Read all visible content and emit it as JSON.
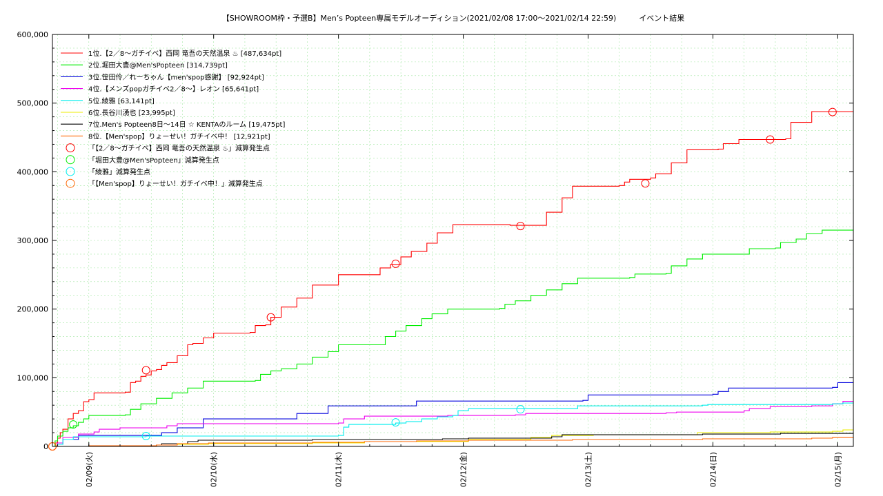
{
  "chart_data": {
    "type": "line",
    "title": "【SHOWROOM枠・予選B】Men’s Popteen専属モデルオーディション(2021/02/08 17:00～2021/02/14 22:59)　　　イベント結果",
    "xlabel": "",
    "ylabel": "",
    "x_unit": "hours since 2021/02/08 17:00",
    "xlim": [
      0,
      154
    ],
    "ylim": [
      0,
      600000
    ],
    "y_ticks": [
      0,
      100000,
      200000,
      300000,
      400000,
      500000,
      600000
    ],
    "y_tick_labels": [
      "0",
      "100,000",
      "200,000",
      "300,000",
      "400,000",
      "500,000",
      "600,000"
    ],
    "x_ticks": [
      7,
      31,
      55,
      79,
      103,
      127,
      151
    ],
    "x_tick_labels": [
      "02/09(火)",
      "02/10(水)",
      "02/11(木)",
      "02/12(金)",
      "02/13(土)",
      "02/14(日)",
      "02/15(月)"
    ],
    "grid": true,
    "legend_position": "top-left",
    "series": [
      {
        "name": "1位.【2／8〜ガチイベ】西岡 竜吾の天然温泉 ♨ [487,634pt]",
        "color": "#ff0000",
        "step": true,
        "points": [
          [
            0,
            0
          ],
          [
            0.5,
            5000
          ],
          [
            1,
            12000
          ],
          [
            1.5,
            20000
          ],
          [
            2,
            25000
          ],
          [
            3,
            40000
          ],
          [
            4,
            48000
          ],
          [
            5,
            52000
          ],
          [
            6,
            65000
          ],
          [
            7,
            68000
          ],
          [
            8,
            78000
          ],
          [
            14,
            79000
          ],
          [
            15,
            93000
          ],
          [
            16,
            95000
          ],
          [
            17,
            102000
          ],
          [
            18,
            104000
          ],
          [
            19,
            110000
          ],
          [
            20,
            112000
          ],
          [
            21,
            118000
          ],
          [
            22,
            122000
          ],
          [
            24,
            132000
          ],
          [
            26,
            148000
          ],
          [
            27,
            150000
          ],
          [
            29,
            158000
          ],
          [
            31,
            165000
          ],
          [
            38,
            166000
          ],
          [
            39,
            176000
          ],
          [
            41,
            177000
          ],
          [
            42,
            188000
          ],
          [
            44,
            203000
          ],
          [
            47,
            216000
          ],
          [
            50,
            235000
          ],
          [
            55,
            250000
          ],
          [
            62,
            250000
          ],
          [
            63,
            260000
          ],
          [
            65,
            265000
          ],
          [
            67,
            276000
          ],
          [
            69,
            284000
          ],
          [
            72,
            296000
          ],
          [
            74,
            311000
          ],
          [
            77,
            323000
          ],
          [
            88,
            322000
          ],
          [
            89,
            322000
          ],
          [
            94,
            322000
          ],
          [
            95,
            341000
          ],
          [
            98,
            362000
          ],
          [
            100,
            379000
          ],
          [
            109,
            380000
          ],
          [
            110,
            385000
          ],
          [
            111,
            389000
          ],
          [
            115,
            391000
          ],
          [
            116,
            397000
          ],
          [
            119,
            413000
          ],
          [
            122,
            432000
          ],
          [
            128,
            433000
          ],
          [
            129,
            441000
          ],
          [
            132,
            447000
          ],
          [
            141,
            448000
          ],
          [
            142,
            472000
          ],
          [
            145,
            472000
          ],
          [
            146,
            487634
          ],
          [
            154,
            487634
          ]
        ],
        "reduction_points": [
          [
            0,
            0
          ],
          [
            18,
            111000
          ],
          [
            42,
            188000
          ],
          [
            66,
            266000
          ],
          [
            90,
            321000
          ],
          [
            114,
            383000
          ],
          [
            138,
            447000
          ],
          [
            150,
            487000
          ]
        ]
      },
      {
        "name": "2位.堀田大豊@Men'sPopteen [314,739pt]",
        "color": "#00ee00",
        "step": true,
        "points": [
          [
            0,
            0
          ],
          [
            0.5,
            8000
          ],
          [
            1,
            15000
          ],
          [
            2,
            22000
          ],
          [
            3,
            27000
          ],
          [
            4,
            30000
          ],
          [
            5,
            35000
          ],
          [
            6,
            40000
          ],
          [
            7,
            45000
          ],
          [
            14,
            46000
          ],
          [
            15,
            54000
          ],
          [
            17,
            62000
          ],
          [
            20,
            70000
          ],
          [
            23,
            78000
          ],
          [
            26,
            85000
          ],
          [
            29,
            95000
          ],
          [
            39,
            96000
          ],
          [
            40,
            105000
          ],
          [
            42,
            110000
          ],
          [
            44,
            113000
          ],
          [
            47,
            120000
          ],
          [
            50,
            130000
          ],
          [
            53,
            138000
          ],
          [
            55,
            148000
          ],
          [
            62,
            148000
          ],
          [
            64,
            160000
          ],
          [
            66,
            168000
          ],
          [
            68,
            176000
          ],
          [
            71,
            186000
          ],
          [
            73,
            193000
          ],
          [
            76,
            200000
          ],
          [
            86,
            201000
          ],
          [
            87,
            207000
          ],
          [
            89,
            212000
          ],
          [
            92,
            220000
          ],
          [
            95,
            228000
          ],
          [
            98,
            237000
          ],
          [
            101,
            245000
          ],
          [
            111,
            246000
          ],
          [
            112,
            251000
          ],
          [
            118,
            252000
          ],
          [
            119,
            263000
          ],
          [
            122,
            273000
          ],
          [
            125,
            280000
          ],
          [
            133,
            280000
          ],
          [
            134,
            288000
          ],
          [
            139,
            289000
          ],
          [
            140,
            297000
          ],
          [
            143,
            302000
          ],
          [
            145,
            310000
          ],
          [
            148,
            315000
          ],
          [
            154,
            314739
          ]
        ],
        "reduction_points": [
          [
            4,
            32000
          ]
        ]
      },
      {
        "name": "3位.笹田伶／れーちゃん【men'spop感謝】 [92,924pt]",
        "color": "#0000dd",
        "step": true,
        "points": [
          [
            0,
            0
          ],
          [
            1,
            3000
          ],
          [
            2,
            10000
          ],
          [
            5,
            16000
          ],
          [
            20,
            16000
          ],
          [
            21,
            20000
          ],
          [
            24,
            27000
          ],
          [
            29,
            40000
          ],
          [
            46,
            40000
          ],
          [
            47,
            48000
          ],
          [
            53,
            59000
          ],
          [
            69,
            59000
          ],
          [
            70,
            66000
          ],
          [
            102,
            67000
          ],
          [
            103,
            75000
          ],
          [
            127,
            76000
          ],
          [
            128,
            80000
          ],
          [
            130,
            85000
          ],
          [
            150,
            86000
          ],
          [
            151,
            92924
          ],
          [
            154,
            92924
          ]
        ],
        "reduction_points": []
      },
      {
        "name": "4位.【メンズpopガチイベ2／8〜】レオン [65,641pt]",
        "color": "#ee00ee",
        "step": true,
        "points": [
          [
            0,
            0
          ],
          [
            1,
            5000
          ],
          [
            2,
            13000
          ],
          [
            5,
            18000
          ],
          [
            8,
            21000
          ],
          [
            9,
            25000
          ],
          [
            13,
            27000
          ],
          [
            21,
            27000
          ],
          [
            22,
            30000
          ],
          [
            24,
            33000
          ],
          [
            55,
            34000
          ],
          [
            56,
            40000
          ],
          [
            60,
            44000
          ],
          [
            75,
            44000
          ],
          [
            76,
            45000
          ],
          [
            89,
            46000
          ],
          [
            91,
            48000
          ],
          [
            118,
            49000
          ],
          [
            120,
            50000
          ],
          [
            133,
            52000
          ],
          [
            134,
            55000
          ],
          [
            138,
            58000
          ],
          [
            146,
            59000
          ],
          [
            150,
            62000
          ],
          [
            152,
            65641
          ],
          [
            154,
            65641
          ]
        ],
        "reduction_points": []
      },
      {
        "name": "5位.綾雅 [63,141pt]",
        "color": "#00eeee",
        "step": true,
        "points": [
          [
            0,
            0
          ],
          [
            1,
            3000
          ],
          [
            2,
            10000
          ],
          [
            4,
            14000
          ],
          [
            18,
            15000
          ],
          [
            19,
            15000
          ],
          [
            55,
            16000
          ],
          [
            56,
            28000
          ],
          [
            57,
            32000
          ],
          [
            66,
            34000
          ],
          [
            68,
            36000
          ],
          [
            71,
            40000
          ],
          [
            74,
            43000
          ],
          [
            77,
            45000
          ],
          [
            78,
            52000
          ],
          [
            80,
            55000
          ],
          [
            100,
            55000
          ],
          [
            101,
            59000
          ],
          [
            125,
            60000
          ],
          [
            126,
            61000
          ],
          [
            150,
            62000
          ],
          [
            152,
            63141
          ],
          [
            154,
            63141
          ]
        ],
        "reduction_points": [
          [
            18,
            15000
          ],
          [
            66,
            35000
          ],
          [
            90,
            54000
          ]
        ]
      },
      {
        "name": "6位.長谷川湧也 [23,995pt]",
        "color": "#eeee00",
        "step": true,
        "points": [
          [
            0,
            0
          ],
          [
            7,
            1000
          ],
          [
            20,
            2000
          ],
          [
            24,
            3000
          ],
          [
            30,
            4000
          ],
          [
            50,
            5000
          ],
          [
            60,
            7000
          ],
          [
            80,
            10000
          ],
          [
            92,
            13000
          ],
          [
            96,
            16000
          ],
          [
            104,
            17000
          ],
          [
            124,
            20000
          ],
          [
            138,
            21000
          ],
          [
            150,
            22000
          ],
          [
            152,
            23995
          ],
          [
            154,
            23995
          ]
        ],
        "reduction_points": []
      },
      {
        "name": "7位.Men's Popteen8日〜14日 ☆ KENTAのルーム [19,475pt]",
        "color": "#000000",
        "step": true,
        "points": [
          [
            0,
            0
          ],
          [
            7,
            1000
          ],
          [
            20,
            2000
          ],
          [
            21,
            4000
          ],
          [
            26,
            7000
          ],
          [
            28,
            9000
          ],
          [
            50,
            10000
          ],
          [
            75,
            11000
          ],
          [
            80,
            12000
          ],
          [
            96,
            14000
          ],
          [
            98,
            17000
          ],
          [
            125,
            18000
          ],
          [
            140,
            19000
          ],
          [
            154,
            19475
          ]
        ],
        "reduction_points": []
      },
      {
        "name": "8位.【Men'spop】りょーせい！ガチイベ中！ [12,921pt]",
        "color": "#ff6600",
        "step": true,
        "points": [
          [
            0,
            0
          ],
          [
            7,
            1000
          ],
          [
            20,
            2000
          ],
          [
            24,
            4000
          ],
          [
            30,
            5000
          ],
          [
            50,
            6000
          ],
          [
            60,
            7000
          ],
          [
            70,
            8000
          ],
          [
            80,
            9000
          ],
          [
            100,
            10000
          ],
          [
            125,
            11000
          ],
          [
            146,
            12000
          ],
          [
            150,
            12921
          ],
          [
            154,
            12921
          ]
        ],
        "reduction_points": [
          [
            0,
            0
          ]
        ]
      }
    ],
    "reduction_legend": [
      {
        "label": "「【2／8〜ガチイベ】西岡 竜吾の天然温泉 ♨」減算発生点",
        "color": "#ff0000"
      },
      {
        "label": "「堀田大豊@Men'sPopteen」減算発生点",
        "color": "#00ee00"
      },
      {
        "label": "「綾雅」減算発生点",
        "color": "#00eeee"
      },
      {
        "label": "「【Men'spop】りょーせい！ガチイベ中！」減算発生点",
        "color": "#ff6600"
      }
    ]
  }
}
